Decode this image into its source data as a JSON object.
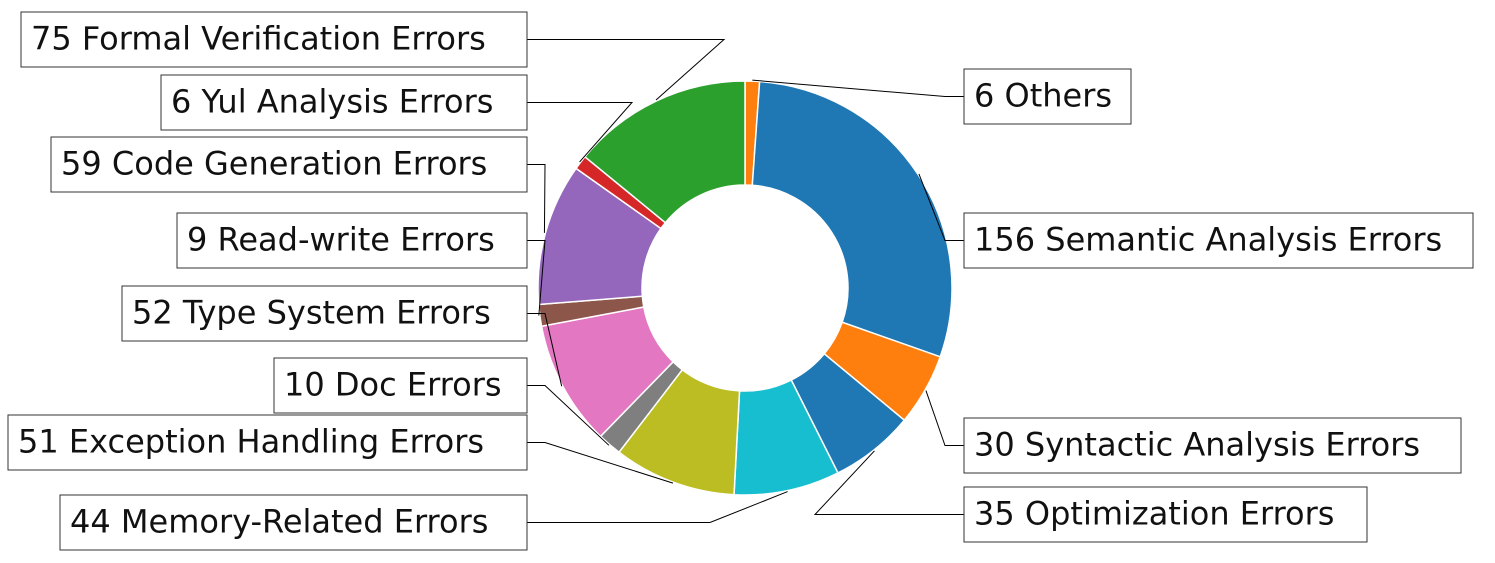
{
  "chart_data": {
    "type": "pie",
    "donut": true,
    "start_angle_deg": 90,
    "direction": "clockwise",
    "slices": [
      {
        "label": "6 Others",
        "value": 6,
        "color": "#ff7f0e"
      },
      {
        "label": "156 Semantic Analysis Errors",
        "value": 156,
        "color": "#1f77b4"
      },
      {
        "label": "30 Syntactic Analysis Errors",
        "value": 30,
        "color": "#ff7f0e"
      },
      {
        "label": "35 Optimization Errors",
        "value": 35,
        "color": "#1f77b4"
      },
      {
        "label": "44 Memory-Related Errors",
        "value": 44,
        "color": "#17becf"
      },
      {
        "label": "51 Exception Handling Errors",
        "value": 51,
        "color": "#bcbd22"
      },
      {
        "label": "10 Doc Errors",
        "value": 10,
        "color": "#7f7f7f"
      },
      {
        "label": "52 Type System Errors",
        "value": 52,
        "color": "#e377c2"
      },
      {
        "label": "9 Read-write Errors",
        "value": 9,
        "color": "#8c564b"
      },
      {
        "label": "59 Code Generation Errors",
        "value": 59,
        "color": "#9467bd"
      },
      {
        "label": "6 Yul Analysis Errors",
        "value": 6,
        "color": "#d62728"
      },
      {
        "label": "75 Formal Verification Errors",
        "value": 75,
        "color": "#2ca02c"
      }
    ]
  }
}
